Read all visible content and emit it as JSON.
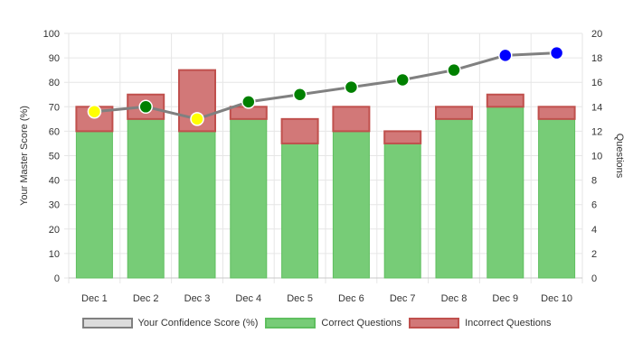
{
  "chart_data": {
    "type": "bar",
    "categories": [
      "Dec 1",
      "Dec 2",
      "Dec 3",
      "Dec 4",
      "Dec 5",
      "Dec 6",
      "Dec 7",
      "Dec 8",
      "Dec 9",
      "Dec 10"
    ],
    "ylabel_left": "Your Master Score (%)",
    "ylabel_right": "Questions",
    "ylim_left": [
      0,
      100
    ],
    "ylim_right": [
      0,
      20
    ],
    "yticks_left": [
      0,
      10,
      20,
      30,
      40,
      50,
      60,
      70,
      80,
      90,
      100
    ],
    "yticks_right": [
      0,
      2,
      4,
      6,
      8,
      10,
      12,
      14,
      16,
      18,
      20
    ],
    "grid": true,
    "legend_position": "bottom",
    "series": [
      {
        "name": "Your Confidence Score (%)",
        "type": "line",
        "axis": "left",
        "values": [
          68,
          70,
          65,
          72,
          75,
          78,
          81,
          85,
          91,
          92
        ],
        "point_colors": [
          "#ffff00",
          "#008000",
          "#ffff00",
          "#008000",
          "#008000",
          "#008000",
          "#008000",
          "#008000",
          "#0000ff",
          "#0000ff"
        ],
        "line_color": "#808080",
        "legend_fill": "#dcdcdc",
        "legend_border": "#808080"
      },
      {
        "name": "Correct Questions",
        "type": "bar",
        "axis": "right",
        "stack": "questions",
        "values": [
          12,
          13,
          12,
          13,
          11,
          12,
          11,
          13,
          14,
          13
        ],
        "fill": "#77cc77",
        "border": "#5fbf5f"
      },
      {
        "name": "Incorrect Questions",
        "type": "bar",
        "axis": "right",
        "stack": "questions",
        "values": [
          2,
          2,
          5,
          1,
          2,
          2,
          1,
          1,
          1,
          1
        ],
        "fill": "#d27878",
        "border": "#c0504d"
      }
    ]
  }
}
